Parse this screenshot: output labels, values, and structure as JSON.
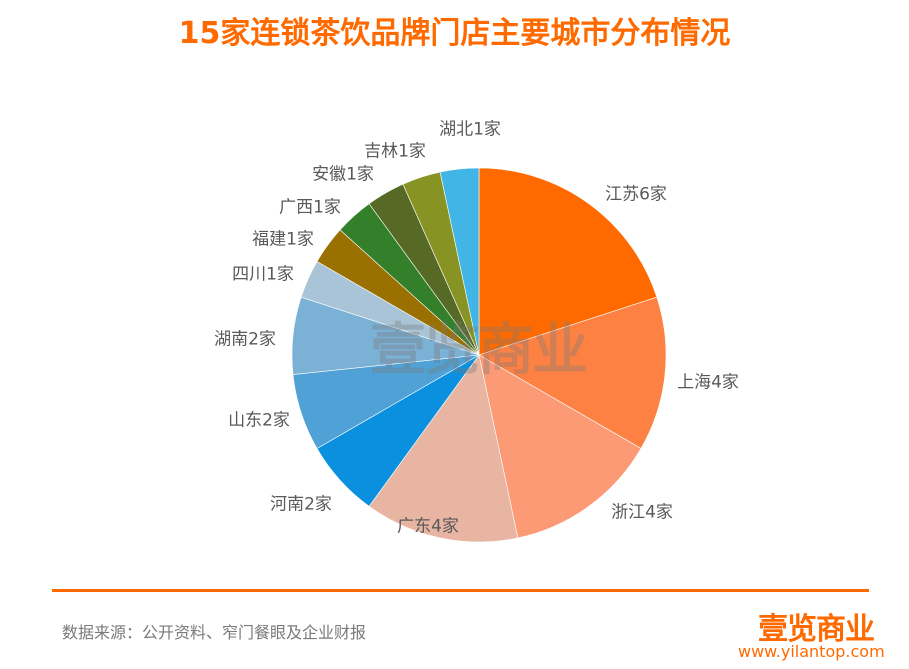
{
  "title": "15家连锁茶饮品牌门店主要城市分布情况",
  "chart_data": {
    "type": "pie",
    "title": "15家连锁茶饮品牌门店主要城市分布情况",
    "categories": [
      "江苏",
      "上海",
      "浙江",
      "广东",
      "河南",
      "山东",
      "湖南",
      "四川",
      "福建",
      "广西",
      "安徽",
      "吉林",
      "湖北"
    ],
    "values": [
      6,
      4,
      4,
      4,
      2,
      2,
      2,
      1,
      1,
      1,
      1,
      1,
      1
    ],
    "labels": [
      "江苏6家",
      "上海4家",
      "浙江4家",
      "广东4家",
      "河南2家",
      "山东2家",
      "湖南2家",
      "四川1家",
      "福建1家",
      "广西1家",
      "安徽1家",
      "吉林1家",
      "湖北1家"
    ],
    "colors": [
      "#ff6a00",
      "#fd8142",
      "#fb9a74",
      "#e8b5a3",
      "#0a90de",
      "#4fa1d6",
      "#7cb1d6",
      "#a8c4d6",
      "#9a7000",
      "#337f2a",
      "#566a26",
      "#879322",
      "#41b5e6"
    ],
    "start_angle": "12 o'clock",
    "direction": "clockwise",
    "legend": "none"
  },
  "watermark": "壹览商业",
  "footer": {
    "source": "数据来源：公开资料、窄门餐眼及企业财报",
    "logo": "壹览商业",
    "url": "www.yilantop.com"
  }
}
